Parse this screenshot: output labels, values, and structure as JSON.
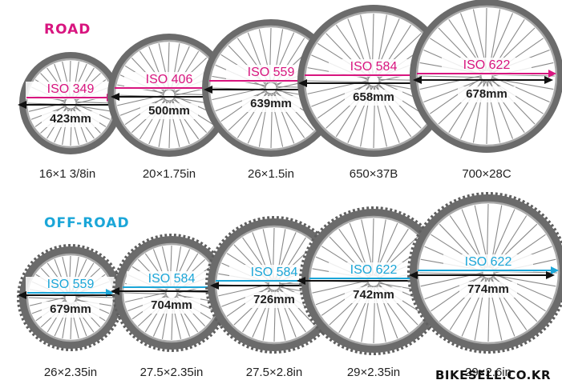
{
  "sections": [
    {
      "title": "ROAD",
      "color": "#d8157f",
      "knobby": false,
      "wheels": [
        {
          "iso": "ISO 349",
          "diameter": "423mm",
          "size": "16×1 3/8in"
        },
        {
          "iso": "ISO 406",
          "diameter": "500mm",
          "size": "20×1.75in"
        },
        {
          "iso": "ISO 559",
          "diameter": "639mm",
          "size": "26×1.5in"
        },
        {
          "iso": "ISO 584",
          "diameter": "658mm",
          "size": "650×37B"
        },
        {
          "iso": "ISO 622",
          "diameter": "678mm",
          "size": "700×28C"
        }
      ]
    },
    {
      "title": "OFF-ROAD",
      "color": "#1ba6d8",
      "knobby": true,
      "wheels": [
        {
          "iso": "ISO 559",
          "diameter": "679mm",
          "size": "26×2.35in"
        },
        {
          "iso": "ISO 584",
          "diameter": "704mm",
          "size": "27.5×2.35in"
        },
        {
          "iso": "ISO 584",
          "diameter": "726mm",
          "size": "27.5×2.8in"
        },
        {
          "iso": "ISO 622",
          "diameter": "742mm",
          "size": "29×2.35in"
        },
        {
          "iso": "ISO 622",
          "diameter": "774mm",
          "size": "29×2.6in"
        }
      ]
    }
  ],
  "watermark": "BIKESELL.CO.KR",
  "colors": {
    "tire": "#6b6b6b",
    "tread": "#5f5f5f",
    "rim": "#a9a9a9",
    "spoke": "#8a8a8a",
    "arrow": "#111111"
  }
}
